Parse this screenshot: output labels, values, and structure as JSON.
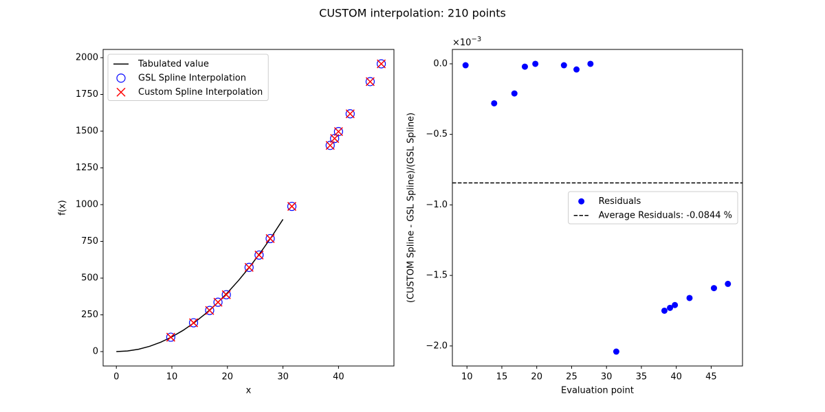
{
  "title": "CUSTOM interpolation: 210 points",
  "chart_data": [
    {
      "type": "scatter",
      "xlabel": "x",
      "ylabel": "f(x)",
      "xlim": [
        -2.38,
        49.98
      ],
      "ylim": [
        -98,
        2056
      ],
      "xticks": [
        0,
        10,
        20,
        30,
        40
      ],
      "yticks": [
        0,
        250,
        500,
        750,
        1000,
        1250,
        1500,
        1750,
        2000
      ],
      "legend": "upper left",
      "series": [
        {
          "name": "Tabulated value",
          "style": "line",
          "color": "#000000",
          "x": [
            0,
            2,
            4,
            6,
            8,
            10,
            12,
            14,
            16,
            18,
            20,
            22,
            24,
            26,
            28,
            30
          ],
          "values": [
            0,
            4,
            16,
            36,
            64,
            100,
            144,
            196,
            256,
            324,
            400,
            484,
            576,
            676,
            784,
            900
          ]
        },
        {
          "name": "GSL Spline Interpolation",
          "style": "open-circle",
          "color": "#0000ff",
          "x": [
            9.8,
            13.9,
            16.8,
            18.3,
            19.8,
            23.9,
            25.7,
            27.7,
            31.6,
            38.5,
            39.3,
            40.0,
            42.1,
            45.7,
            47.7
          ],
          "values": [
            98,
            196,
            280,
            336,
            387,
            573,
            657,
            769,
            988,
            1403,
            1450,
            1497,
            1618,
            1837,
            1958
          ]
        },
        {
          "name": "Custom Spline Interpolation",
          "style": "x",
          "color": "#ff0000",
          "x": [
            9.8,
            13.9,
            16.8,
            18.3,
            19.8,
            23.9,
            25.7,
            27.7,
            31.6,
            38.5,
            39.3,
            40.0,
            42.1,
            45.7,
            47.7
          ],
          "values": [
            98,
            196,
            280,
            336,
            387,
            573,
            657,
            769,
            988,
            1403,
            1450,
            1497,
            1618,
            1837,
            1958
          ]
        }
      ]
    },
    {
      "type": "scatter",
      "xlabel": "Evaluation point",
      "ylabel": "(CUSTOM Spline -  GSL Spline)/(GSL Spline)",
      "y_offset": {
        "base": "×10",
        "exponent": "−3"
      },
      "xlim": [
        7.91,
        49.49
      ],
      "ylim": [
        -2.142,
        0.102
      ],
      "xticks": [
        10,
        15,
        20,
        25,
        30,
        35,
        40,
        45
      ],
      "yticks": [
        {
          "value": 0,
          "label": "0.0"
        },
        {
          "value": -0.5,
          "label": "−0.5"
        },
        {
          "value": -1,
          "label": "−1.0"
        },
        {
          "value": -1.5,
          "label": "−1.5"
        },
        {
          "value": -2,
          "label": "−2.0"
        }
      ],
      "legend": "center right",
      "series": [
        {
          "name": "Residuals",
          "style": "dot",
          "color": "#0000ff",
          "x": [
            9.8,
            13.9,
            16.8,
            18.3,
            19.8,
            23.9,
            25.7,
            27.7,
            31.4,
            38.3,
            39.1,
            39.8,
            41.9,
            45.4,
            47.4
          ],
          "values": [
            -0.01,
            -0.28,
            -0.21,
            -0.02,
            0.0,
            -0.01,
            -0.04,
            0.0,
            -2.04,
            -1.75,
            -1.73,
            -1.71,
            -1.66,
            -1.59,
            -1.56
          ]
        },
        {
          "name": "Average Residuals: -0.0844 %",
          "style": "hline",
          "color": "#000000",
          "value": -0.844
        }
      ]
    }
  ]
}
